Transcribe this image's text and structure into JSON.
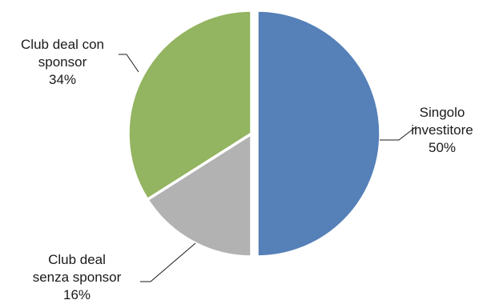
{
  "chart_data": {
    "type": "pie",
    "title": "",
    "slices": [
      {
        "label": "Singolo investitore",
        "label_lines": [
          "Singolo",
          "investitore"
        ],
        "value": 50,
        "value_label": "50%",
        "color": "#5580b8"
      },
      {
        "label": "Club deal senza sponsor",
        "label_lines": [
          "Club deal",
          "senza sponsor"
        ],
        "value": 16,
        "value_label": "16%",
        "color": "#b2b2b2"
      },
      {
        "label": "Club deal con sponsor",
        "label_lines": [
          "Club deal con",
          "sponsor"
        ],
        "value": 34,
        "value_label": "34%",
        "color": "#93b460"
      }
    ],
    "start_angle_deg": 0,
    "direction": "clockwise",
    "exploded": true
  }
}
